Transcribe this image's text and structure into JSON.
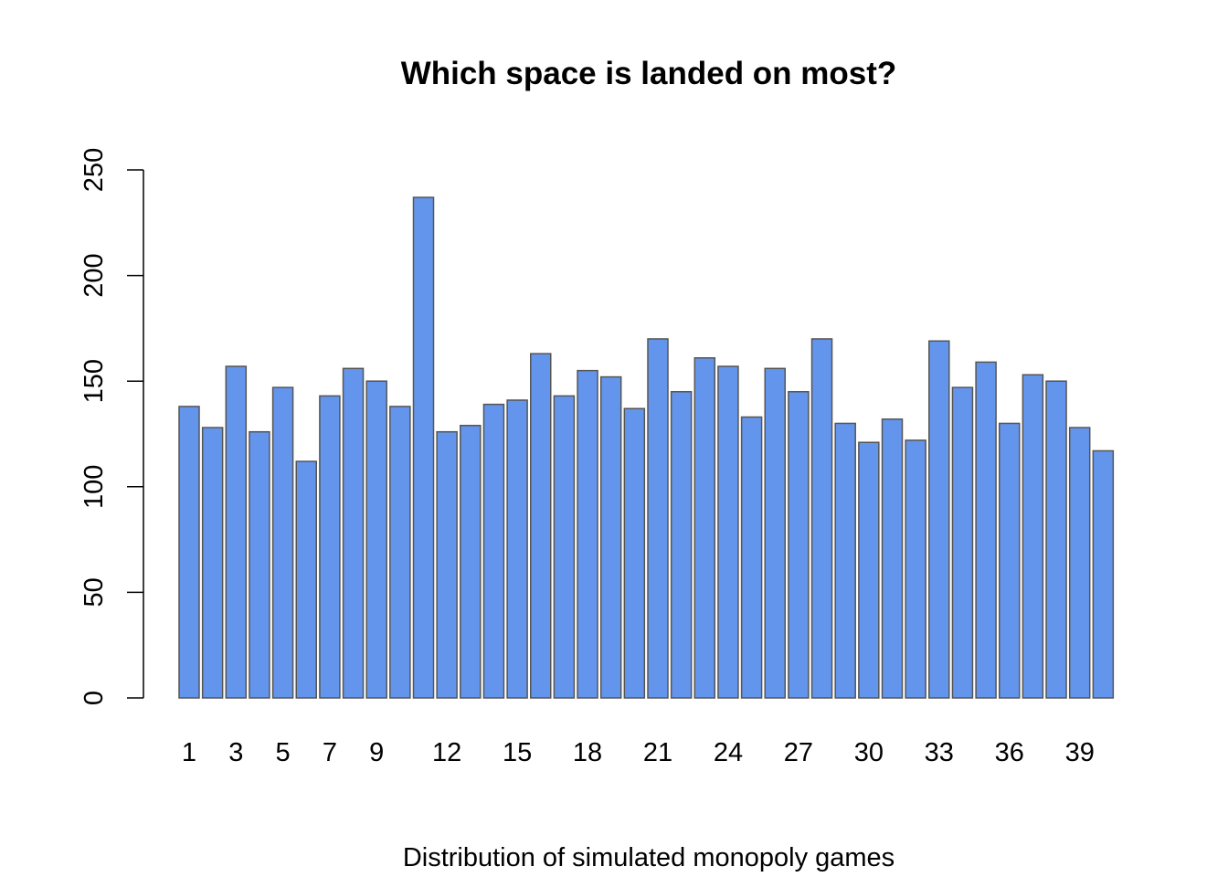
{
  "chart_data": {
    "type": "bar",
    "title": "Which space is landed on most?",
    "xlabel": "Distribution of simulated monopoly games",
    "ylabel": "",
    "ylim": [
      0,
      250
    ],
    "yticks": [
      0,
      50,
      100,
      150,
      200,
      250
    ],
    "categories": [
      "1",
      "2",
      "3",
      "4",
      "5",
      "6",
      "7",
      "8",
      "9",
      "10",
      "11",
      "12",
      "13",
      "14",
      "15",
      "16",
      "17",
      "18",
      "19",
      "20",
      "21",
      "22",
      "23",
      "24",
      "25",
      "26",
      "27",
      "28",
      "29",
      "30",
      "31",
      "32",
      "33",
      "34",
      "35",
      "36",
      "37",
      "38",
      "39",
      "40"
    ],
    "visible_category_labels": [
      "1",
      "3",
      "5",
      "7",
      "9",
      "12",
      "15",
      "18",
      "21",
      "24",
      "27",
      "30",
      "33",
      "36",
      "39"
    ],
    "values": [
      138,
      128,
      157,
      126,
      147,
      112,
      143,
      156,
      150,
      138,
      237,
      126,
      129,
      139,
      141,
      163,
      143,
      155,
      152,
      137,
      170,
      145,
      161,
      157,
      133,
      156,
      145,
      170,
      130,
      121,
      132,
      122,
      169,
      147,
      159,
      130,
      153,
      150,
      128,
      117
    ],
    "bar_color": "#6495ED",
    "bar_border_color": "#555555",
    "grid": false,
    "legend": "none"
  }
}
